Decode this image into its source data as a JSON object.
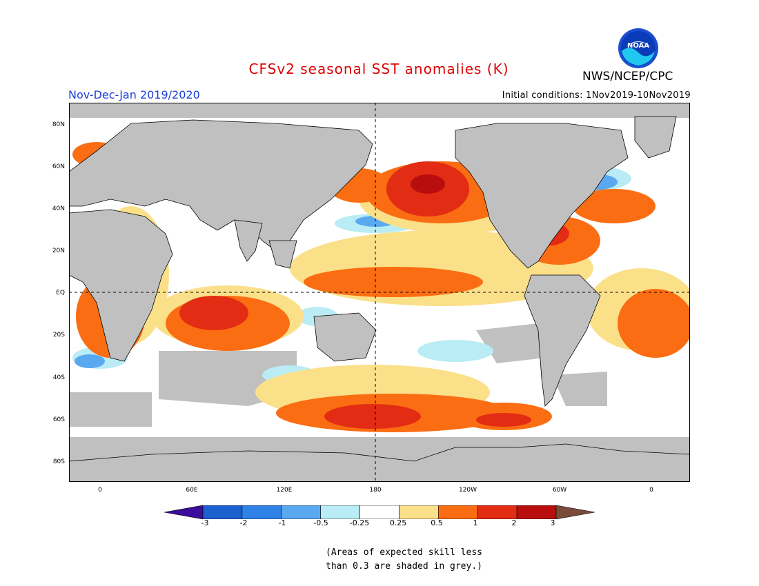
{
  "header": {
    "title": "CFSv2 seasonal SST anomalies (K)",
    "period": "Nov-Dec-Jan 2019/2020",
    "initial_conditions": "Initial conditions: 1Nov2019-10Nov2019",
    "agency": "NWS/NCEP/CPC",
    "logo_text": "NOAA"
  },
  "map": {
    "projection": "equirectangular",
    "lat_ticks": [
      "80N",
      "60N",
      "40N",
      "20N",
      "EQ",
      "20S",
      "40S",
      "60S",
      "80S"
    ],
    "lon_ticks": [
      "0",
      "60E",
      "120E",
      "180",
      "120W",
      "60W",
      "0"
    ],
    "land_color": "#c0c0c0",
    "reference_lines": [
      "equator",
      "dateline"
    ]
  },
  "colorbar": {
    "labels": [
      "-3",
      "-2",
      "-1",
      "-0.5",
      "-0.25",
      "0.25",
      "0.5",
      "1",
      "2",
      "3"
    ],
    "colors": [
      "#3a0e9a",
      "#1c5fce",
      "#2f82e6",
      "#5aa9f0",
      "#b9ecf5",
      "#ffffff",
      "#fbe08a",
      "#fb6d12",
      "#e32c14",
      "#b80e0e",
      "#7a4a3a"
    ]
  },
  "footnote": {
    "line1": "(Areas of expected skill less",
    "line2": "than 0.3 are shaded in grey.)"
  }
}
